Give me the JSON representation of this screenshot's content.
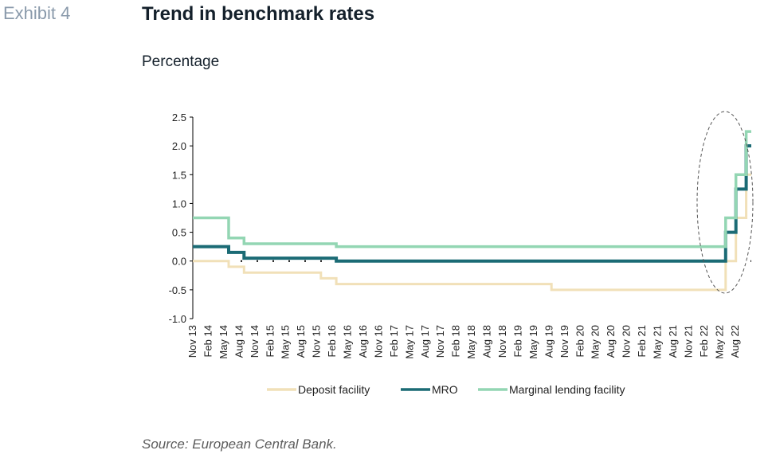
{
  "exhibit_label": "Exhibit 4",
  "title": "Trend in benchmark rates",
  "unit_label": "Percentage",
  "source": "Source: European Central Bank.",
  "colors": {
    "deposit": "#f1e0b8",
    "mro": "#1b6b75",
    "marginal": "#93d6b3",
    "axis": "#000000",
    "highlight": "#555555"
  },
  "chart_data": {
    "type": "line",
    "step": true,
    "ylim": [
      -1.0,
      2.5
    ],
    "y_ticks": [
      "2.5",
      "2.0",
      "1.5",
      "1.0",
      "0.5",
      "0.0",
      "-0.5",
      "-1.0"
    ],
    "x_ticks": [
      "Nov 13",
      "Feb 14",
      "May 14",
      "Aug 14",
      "Nov 14",
      "Feb 15",
      "May 15",
      "Aug 15",
      "Nov 15",
      "Feb 16",
      "May 16",
      "Aug 16",
      "Nov 16",
      "Feb 17",
      "May 17",
      "Aug 17",
      "Nov 17",
      "Feb 18",
      "May 18",
      "Aug 18",
      "Nov 18",
      "Feb 19",
      "May 19",
      "Aug 19",
      "Nov 19",
      "Feb 20",
      "May 20",
      "Aug 20",
      "Nov 20",
      "Feb 21",
      "May 21",
      "Aug 21",
      "Nov 21",
      "Feb 22",
      "May 22",
      "Aug 22"
    ],
    "x_range": [
      "2013-11",
      "2022-12"
    ],
    "highlight": "ellipse around 2022 rate increases",
    "legend_position": "bottom",
    "series": [
      {
        "name": "Deposit facility",
        "color_key": "deposit",
        "points": [
          [
            "2013-11",
            0.0
          ],
          [
            "2014-06",
            -0.1
          ],
          [
            "2014-09",
            -0.2
          ],
          [
            "2015-12",
            -0.3
          ],
          [
            "2016-03",
            -0.4
          ],
          [
            "2019-09",
            -0.5
          ],
          [
            "2022-07",
            0.0
          ],
          [
            "2022-09",
            0.75
          ],
          [
            "2022-11",
            1.5
          ],
          [
            "2022-12",
            1.5
          ]
        ]
      },
      {
        "name": "MRO",
        "color_key": "mro",
        "points": [
          [
            "2013-11",
            0.25
          ],
          [
            "2014-06",
            0.15
          ],
          [
            "2014-09",
            0.05
          ],
          [
            "2016-03",
            0.0
          ],
          [
            "2022-07",
            0.5
          ],
          [
            "2022-09",
            1.25
          ],
          [
            "2022-11",
            2.0
          ],
          [
            "2022-12",
            2.0
          ]
        ]
      },
      {
        "name": "Marginal lending facility",
        "color_key": "marginal",
        "points": [
          [
            "2013-11",
            0.75
          ],
          [
            "2014-06",
            0.4
          ],
          [
            "2014-09",
            0.3
          ],
          [
            "2015-12",
            0.3
          ],
          [
            "2016-03",
            0.25
          ],
          [
            "2022-07",
            0.75
          ],
          [
            "2022-09",
            1.5
          ],
          [
            "2022-11",
            2.25
          ],
          [
            "2022-12",
            2.25
          ]
        ]
      }
    ]
  }
}
